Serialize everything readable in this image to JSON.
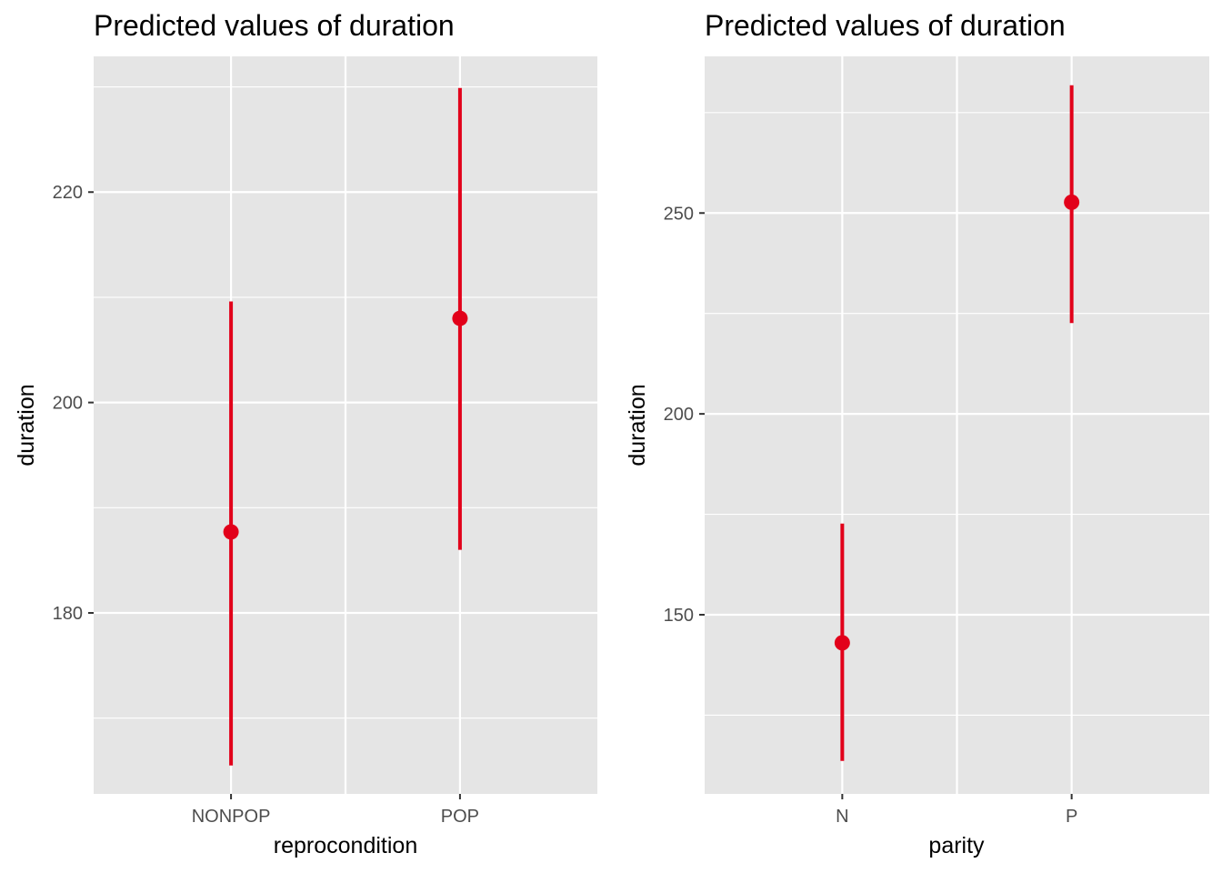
{
  "colors": {
    "panel_background": "#e5e5e5",
    "grid": "#ffffff",
    "point_and_interval": "#e2001a",
    "tick_label": "#4d4d4d",
    "text": "#000000"
  },
  "chart_data": [
    {
      "type": "scatter",
      "title": "Predicted values of duration",
      "xlabel": "reprocondition",
      "ylabel": "duration",
      "categories": [
        "NONPOP",
        "POP"
      ],
      "estimates": [
        187.7,
        208.0
      ],
      "conf_low": [
        165.5,
        186.0
      ],
      "conf_high": [
        209.6,
        229.9
      ],
      "ylim": [
        162.8,
        232.9
      ],
      "yticks": [
        180,
        200,
        220
      ],
      "ytick_labels": [
        "180",
        "200",
        "220"
      ],
      "grid": true,
      "legend": "none"
    },
    {
      "type": "scatter",
      "title": "Predicted values of duration",
      "xlabel": "parity",
      "ylabel": "duration",
      "categories": [
        "N",
        "P"
      ],
      "estimates": [
        143.0,
        252.7
      ],
      "conf_low": [
        113.6,
        222.6
      ],
      "conf_high": [
        172.7,
        281.8
      ],
      "ylim": [
        105.4,
        289.0
      ],
      "yticks": [
        150,
        200,
        250
      ],
      "ytick_labels": [
        "150",
        "200",
        "250"
      ],
      "grid": true,
      "legend": "none"
    }
  ]
}
